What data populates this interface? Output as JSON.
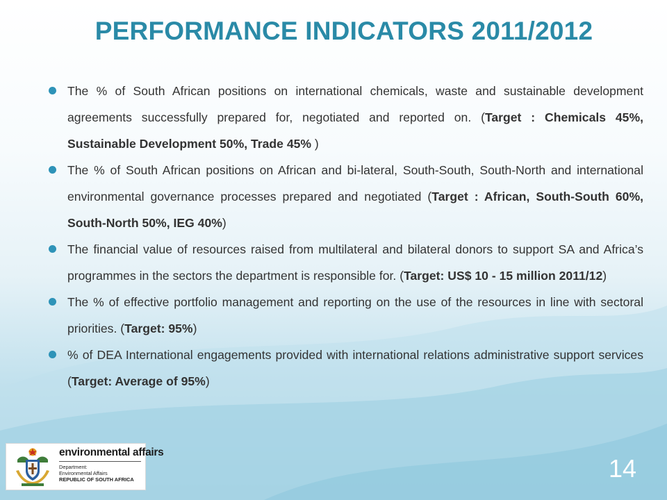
{
  "slide": {
    "title": "PERFORMANCE INDICATORS 2011/2012",
    "slide_number": "14",
    "accent_color": "#2a8aa7",
    "bullet_color": "#2e93b8"
  },
  "bullets": [
    {
      "text": "The % of South African positions on international chemicals, waste and sustainable development agreements successfully prepared for, negotiated and reported on. (",
      "bold": "Target : Chemicals 45%, Sustainable Development 50%, Trade 45%",
      "after": " )"
    },
    {
      "text": "The % of South African positions on African and bi-lateral, South-South, South-North and international environmental governance processes prepared and negotiated (",
      "bold": "Target : African, South-South 60%, South-North 50%, IEG 40%",
      "after": ")"
    },
    {
      "text": "The financial value of resources raised from multilateral and bilateral donors to support SA and Africa’s programmes in the sectors the department is responsible for. (",
      "bold": "Target: US$ 10 - 15 million 2011/12",
      "after": ")"
    },
    {
      "text": "The % of effective portfolio management and reporting on the use of the resources in line with sectoral priorities. (",
      "bold": "Target: 95%",
      "after": ")"
    },
    {
      "text": "% of DEA International engagements provided with international relations administrative support services (",
      "bold": "Target: Average of 95%",
      "after": ")"
    }
  ],
  "logo": {
    "name": "environmental affairs",
    "line1": "Department:",
    "line2": "Environmental Affairs",
    "line3": "REPUBLIC OF SOUTH AFRICA",
    "icon": "coat-of-arms-icon"
  }
}
